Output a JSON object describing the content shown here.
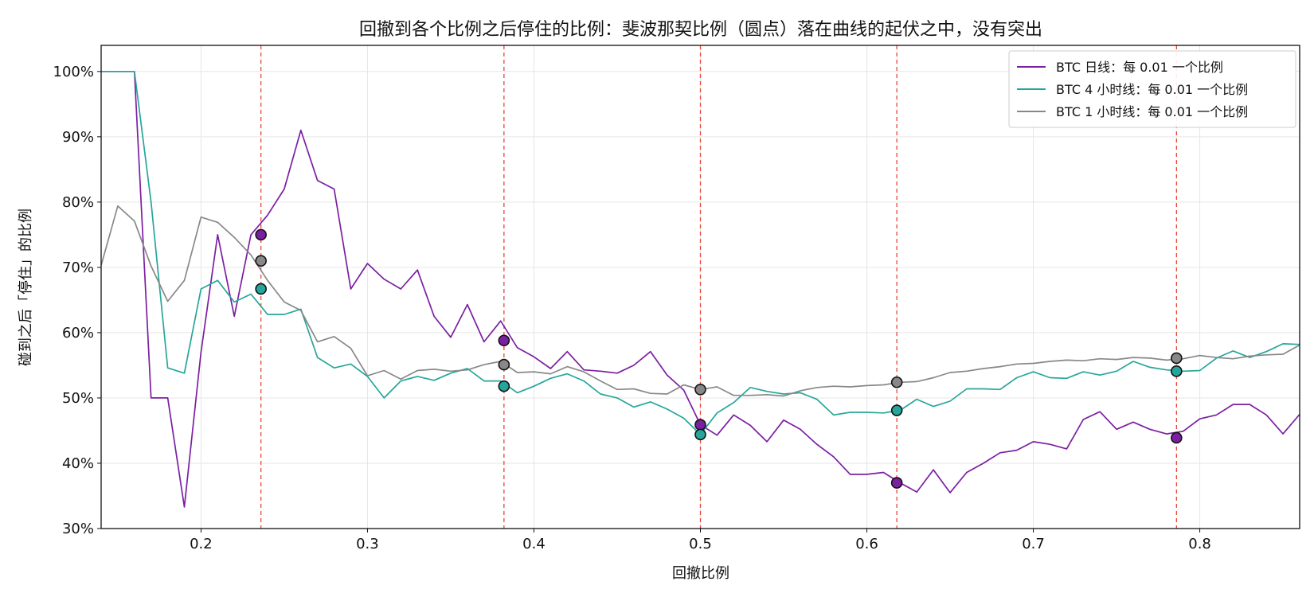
{
  "chart_data": {
    "type": "line",
    "title": "回撤到各个比例之后停住的比例：斐波那契比例（圆点）落在曲线的起伏之中，没有突出",
    "xlabel": "回撤比例",
    "ylabel": "碰到之后「停住」的比例",
    "xlim": [
      0.14,
      0.86
    ],
    "ylim": [
      30,
      104
    ],
    "xticks": [
      0.2,
      0.3,
      0.4,
      0.5,
      0.6,
      0.7,
      0.8
    ],
    "xtick_labels": [
      "0.2",
      "0.3",
      "0.4",
      "0.5",
      "0.6",
      "0.7",
      "0.8"
    ],
    "yticks": [
      30,
      40,
      50,
      60,
      70,
      80,
      90,
      100
    ],
    "ytick_labels": [
      "30%",
      "40%",
      "50%",
      "60%",
      "70%",
      "80%",
      "90%",
      "100%"
    ],
    "grid": true,
    "legend_position": "top-right",
    "fib_levels": [
      0.236,
      0.382,
      0.5,
      0.618,
      0.786
    ],
    "fib_line_color": "#e8473a",
    "x": [
      0.14,
      0.15,
      0.16,
      0.17,
      0.18,
      0.19,
      0.2,
      0.21,
      0.22,
      0.23,
      0.24,
      0.25,
      0.26,
      0.27,
      0.28,
      0.29,
      0.3,
      0.31,
      0.32,
      0.33,
      0.34,
      0.35,
      0.36,
      0.37,
      0.38,
      0.39,
      0.4,
      0.41,
      0.42,
      0.43,
      0.44,
      0.45,
      0.46,
      0.47,
      0.48,
      0.49,
      0.5,
      0.51,
      0.52,
      0.53,
      0.54,
      0.55,
      0.56,
      0.57,
      0.58,
      0.59,
      0.6,
      0.61,
      0.62,
      0.63,
      0.64,
      0.65,
      0.66,
      0.67,
      0.68,
      0.69,
      0.7,
      0.71,
      0.72,
      0.73,
      0.74,
      0.75,
      0.76,
      0.77,
      0.78,
      0.79,
      0.8,
      0.81,
      0.82,
      0.83,
      0.84,
      0.85,
      0.86
    ],
    "series": [
      {
        "name": "BTC 日线：每 0.01 一个比例",
        "color": "#7b1fa2",
        "values": [
          100,
          100,
          100,
          50,
          50,
          33.3,
          57,
          75,
          62.5,
          75,
          78,
          82,
          91,
          83.3,
          82,
          66.7,
          70.6,
          68.2,
          66.7,
          69.6,
          62.5,
          59.3,
          64.3,
          58.6,
          61.8,
          57.7,
          56.3,
          54.5,
          57.1,
          54.3,
          54.1,
          53.8,
          55,
          57.1,
          53.5,
          51.2,
          45.9,
          44.3,
          47.4,
          45.8,
          43.3,
          46.6,
          45.2,
          42.9,
          41,
          38.3,
          38.3,
          38.6,
          37,
          35.6,
          39,
          35.5,
          38.6,
          40,
          41.6,
          42,
          43.3,
          42.9,
          42.2,
          46.7,
          47.9,
          45.2,
          46.3,
          45.2,
          44.5,
          44.9,
          46.8,
          47.4,
          49,
          49,
          47.4,
          44.5,
          47.5
        ],
        "fib_values": [
          75,
          58.8,
          45.9,
          37,
          43.9
        ]
      },
      {
        "name": "BTC 4 小时线：每 0.01 一个比例",
        "color": "#26a69a",
        "values": [
          100,
          100,
          100,
          80,
          54.6,
          53.8,
          66.7,
          68,
          64.7,
          65.9,
          62.8,
          62.8,
          63.6,
          56.2,
          54.6,
          55.2,
          53.3,
          50,
          52.6,
          53.3,
          52.7,
          53.8,
          54.5,
          52.6,
          52.6,
          50.8,
          51.8,
          53,
          53.7,
          52.6,
          50.6,
          50,
          48.6,
          49.4,
          48.3,
          46.9,
          44.4,
          47.7,
          49.3,
          51.6,
          51,
          50.6,
          50.8,
          49.8,
          47.4,
          47.8,
          47.8,
          47.7,
          48.1,
          49.8,
          48.7,
          49.5,
          51.4,
          51.4,
          51.3,
          53.1,
          54,
          53.1,
          53,
          54,
          53.5,
          54.1,
          55.6,
          54.7,
          54.3,
          54.1,
          54.2,
          56.1,
          57.2,
          56.2,
          57.1,
          58.3,
          58.2
        ],
        "fib_values": [
          66.7,
          51.8,
          44.4,
          48.1,
          54.1
        ]
      },
      {
        "name": "BTC 1 小时线：每 0.01 一个比例",
        "color": "#888888",
        "values": [
          70.3,
          79.4,
          77.1,
          70.2,
          64.8,
          68,
          77.7,
          76.9,
          74.6,
          71.9,
          68,
          64.7,
          63.4,
          58.6,
          59.4,
          57.6,
          53.4,
          54.2,
          52.9,
          54.2,
          54.4,
          54.1,
          54.3,
          55.1,
          55.6,
          53.9,
          54,
          53.7,
          54.8,
          54,
          52.6,
          51.3,
          51.4,
          50.7,
          50.6,
          52,
          51.3,
          51.7,
          50.4,
          50.4,
          50.5,
          50.3,
          51.1,
          51.6,
          51.8,
          51.7,
          51.9,
          52,
          52.4,
          52.5,
          53.1,
          53.9,
          54.1,
          54.5,
          54.8,
          55.2,
          55.3,
          55.6,
          55.8,
          55.7,
          56,
          55.9,
          56.2,
          56.1,
          55.8,
          56,
          56.5,
          56.2,
          56,
          56.4,
          56.6,
          56.7,
          58.1
        ],
        "fib_values": [
          71,
          55.1,
          51.3,
          52.4,
          56.1
        ]
      }
    ]
  }
}
